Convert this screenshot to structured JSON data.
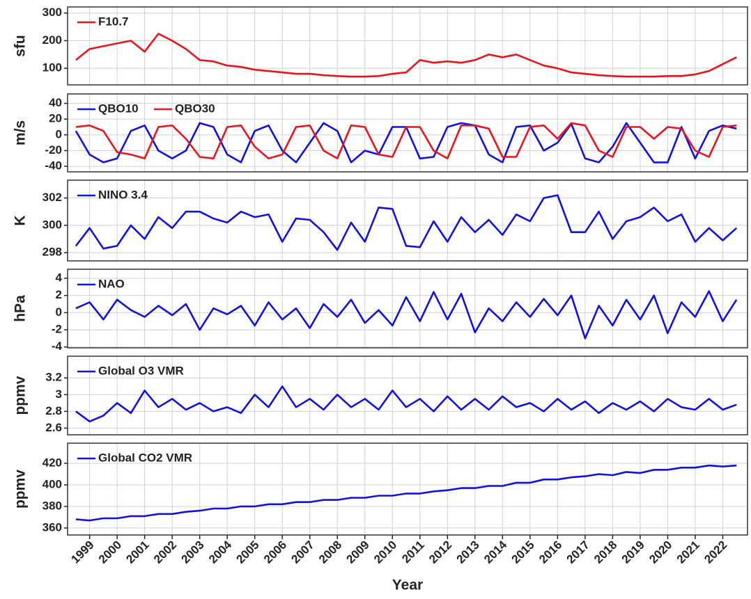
{
  "chart_data": [
    {
      "type": "line",
      "ylabel": "sfu",
      "xlim": [
        1998.2,
        2022.9
      ],
      "ylim": [
        40,
        322
      ],
      "yticks": [
        100,
        200,
        300
      ],
      "grid": true,
      "legend": "upper left",
      "x": [
        1998.5,
        1999,
        1999.5,
        2000,
        2000.5,
        2001,
        2001.5,
        2002,
        2002.5,
        2003,
        2003.5,
        2004,
        2004.5,
        2005,
        2005.5,
        2006,
        2006.5,
        2007,
        2007.5,
        2008,
        2008.5,
        2009,
        2009.5,
        2010,
        2010.5,
        2011,
        2011.5,
        2012,
        2012.5,
        2013,
        2013.5,
        2014,
        2014.5,
        2015,
        2015.5,
        2016,
        2016.5,
        2017,
        2017.5,
        2018,
        2018.5,
        2019,
        2019.5,
        2020,
        2020.5,
        2021,
        2021.5,
        2022,
        2022.5
      ],
      "series": [
        {
          "name": "F10.7",
          "color": "#e8141b",
          "values": [
            130,
            170,
            180,
            190,
            200,
            160,
            225,
            200,
            170,
            130,
            125,
            110,
            105,
            95,
            90,
            85,
            80,
            80,
            75,
            72,
            70,
            70,
            72,
            80,
            85,
            130,
            120,
            125,
            120,
            130,
            150,
            140,
            150,
            130,
            110,
            100,
            85,
            80,
            75,
            72,
            70,
            70,
            70,
            72,
            72,
            78,
            90,
            115,
            140
          ]
        }
      ]
    },
    {
      "type": "line",
      "ylabel": "m/s",
      "xlim": [
        1998.2,
        2022.9
      ],
      "ylim": [
        -47,
        52
      ],
      "yticks": [
        -40,
        -20,
        0,
        20,
        40
      ],
      "grid": true,
      "legend": "upper left",
      "x": [
        1998.5,
        1999,
        1999.5,
        2000,
        2000.5,
        2001,
        2001.5,
        2002,
        2002.5,
        2003,
        2003.5,
        2004,
        2004.5,
        2005,
        2005.5,
        2006,
        2006.5,
        2007,
        2007.5,
        2008,
        2008.5,
        2009,
        2009.5,
        2010,
        2010.5,
        2011,
        2011.5,
        2012,
        2012.5,
        2013,
        2013.5,
        2014,
        2014.5,
        2015,
        2015.5,
        2016,
        2016.5,
        2017,
        2017.5,
        2018,
        2018.5,
        2019,
        2019.5,
        2020,
        2020.5,
        2021,
        2021.5,
        2022,
        2022.5
      ],
      "series": [
        {
          "name": "QBO10",
          "color": "#1010e0",
          "values": [
            5,
            -25,
            -35,
            -30,
            5,
            12,
            -20,
            -30,
            -20,
            15,
            10,
            -25,
            -35,
            5,
            12,
            -20,
            -35,
            -10,
            15,
            5,
            -35,
            -20,
            -25,
            10,
            10,
            -30,
            -28,
            10,
            15,
            12,
            -25,
            -35,
            10,
            12,
            -20,
            -10,
            14,
            -30,
            -35,
            -15,
            15,
            -10,
            -35,
            -35,
            10,
            -30,
            5,
            12,
            8
          ]
        },
        {
          "name": "QBO30",
          "color": "#e8141b",
          "values": [
            10,
            12,
            5,
            -22,
            -25,
            -30,
            10,
            12,
            -5,
            -28,
            -30,
            10,
            12,
            -15,
            -30,
            -25,
            10,
            12,
            -20,
            -30,
            12,
            10,
            -25,
            -28,
            10,
            10,
            -20,
            -30,
            12,
            12,
            8,
            -28,
            -28,
            10,
            12,
            -5,
            15,
            12,
            -20,
            -28,
            10,
            10,
            -5,
            10,
            8,
            -20,
            -28,
            10,
            12
          ]
        }
      ]
    },
    {
      "type": "line",
      "ylabel": "K",
      "xlim": [
        1998.2,
        2022.9
      ],
      "ylim": [
        297.4,
        303.3
      ],
      "yticks": [
        298,
        300,
        302
      ],
      "grid": true,
      "legend": "upper left",
      "x": [
        1998.5,
        1999,
        1999.5,
        2000,
        2000.5,
        2001,
        2001.5,
        2002,
        2002.5,
        2003,
        2003.5,
        2004,
        2004.5,
        2005,
        2005.5,
        2006,
        2006.5,
        2007,
        2007.5,
        2008,
        2008.5,
        2009,
        2009.5,
        2010,
        2010.5,
        2011,
        2011.5,
        2012,
        2012.5,
        2013,
        2013.5,
        2014,
        2014.5,
        2015,
        2015.5,
        2016,
        2016.5,
        2017,
        2017.5,
        2018,
        2018.5,
        2019,
        2019.5,
        2020,
        2020.5,
        2021,
        2021.5,
        2022,
        2022.5
      ],
      "series": [
        {
          "name": "NINO 3.4",
          "color": "#1010e0",
          "values": [
            298.5,
            299.8,
            298.3,
            298.5,
            300.0,
            299.0,
            300.6,
            299.8,
            301.0,
            301.0,
            300.5,
            300.2,
            301.0,
            300.6,
            300.8,
            298.8,
            300.5,
            300.4,
            299.5,
            298.2,
            300.2,
            298.8,
            301.3,
            301.2,
            298.5,
            298.4,
            300.3,
            298.8,
            300.6,
            299.5,
            300.4,
            299.3,
            300.8,
            300.3,
            302.0,
            302.2,
            299.5,
            299.5,
            301.0,
            299.0,
            300.3,
            300.6,
            301.3,
            300.3,
            300.8,
            298.8,
            299.8,
            298.9,
            299.8
          ]
        }
      ]
    },
    {
      "type": "line",
      "ylabel": "hPa",
      "xlim": [
        1998.2,
        2022.9
      ],
      "ylim": [
        -4.1,
        5.05
      ],
      "yticks": [
        -4,
        -2,
        0,
        2,
        4
      ],
      "grid": true,
      "legend": "upper left",
      "x": [
        1998.5,
        1999,
        1999.5,
        2000,
        2000.5,
        2001,
        2001.5,
        2002,
        2002.5,
        2003,
        2003.5,
        2004,
        2004.5,
        2005,
        2005.5,
        2006,
        2006.5,
        2007,
        2007.5,
        2008,
        2008.5,
        2009,
        2009.5,
        2010,
        2010.5,
        2011,
        2011.5,
        2012,
        2012.5,
        2013,
        2013.5,
        2014,
        2014.5,
        2015,
        2015.5,
        2016,
        2016.5,
        2017,
        2017.5,
        2018,
        2018.5,
        2019,
        2019.5,
        2020,
        2020.5,
        2021,
        2021.5,
        2022,
        2022.5
      ],
      "series": [
        {
          "name": "NAO",
          "color": "#1010e0",
          "values": [
            0.5,
            1.2,
            -0.8,
            1.5,
            0.3,
            -0.5,
            0.8,
            -0.3,
            1.0,
            -2.0,
            0.5,
            -0.2,
            0.8,
            -1.5,
            1.2,
            -0.8,
            0.5,
            -1.8,
            1.0,
            -0.5,
            1.5,
            -1.2,
            0.3,
            -1.5,
            1.8,
            -1.0,
            2.4,
            -0.8,
            2.2,
            -2.3,
            0.5,
            -1.0,
            1.2,
            -0.5,
            1.6,
            -0.3,
            2.0,
            -3.0,
            0.8,
            -1.5,
            1.5,
            -0.8,
            2.0,
            -2.4,
            1.2,
            -0.5,
            2.5,
            -1.0,
            1.5
          ]
        }
      ]
    },
    {
      "type": "line",
      "ylabel": "ppmv",
      "xlim": [
        1998.2,
        2022.9
      ],
      "ylim": [
        2.52,
        3.46
      ],
      "yticks": [
        2.6,
        2.8,
        3,
        3.2
      ],
      "grid": true,
      "legend": "upper left",
      "x": [
        1998.5,
        1999,
        1999.5,
        2000,
        2000.5,
        2001,
        2001.5,
        2002,
        2002.5,
        2003,
        2003.5,
        2004,
        2004.5,
        2005,
        2005.5,
        2006,
        2006.5,
        2007,
        2007.5,
        2008,
        2008.5,
        2009,
        2009.5,
        2010,
        2010.5,
        2011,
        2011.5,
        2012,
        2012.5,
        2013,
        2013.5,
        2014,
        2014.5,
        2015,
        2015.5,
        2016,
        2016.5,
        2017,
        2017.5,
        2018,
        2018.5,
        2019,
        2019.5,
        2020,
        2020.5,
        2021,
        2021.5,
        2022,
        2022.5
      ],
      "series": [
        {
          "name": "Global O3 VMR",
          "color": "#1010e0",
          "values": [
            2.8,
            2.68,
            2.75,
            2.9,
            2.78,
            3.05,
            2.85,
            2.95,
            2.82,
            2.9,
            2.8,
            2.85,
            2.78,
            3.0,
            2.85,
            3.1,
            2.85,
            2.95,
            2.82,
            3.0,
            2.85,
            2.95,
            2.82,
            3.05,
            2.85,
            2.95,
            2.8,
            2.98,
            2.82,
            2.95,
            2.82,
            2.98,
            2.85,
            2.9,
            2.8,
            2.95,
            2.82,
            2.92,
            2.78,
            2.9,
            2.82,
            2.92,
            2.8,
            2.95,
            2.85,
            2.82,
            2.95,
            2.82,
            2.88
          ]
        }
      ]
    },
    {
      "type": "line",
      "ylabel": "ppmv",
      "xlabel": "Year",
      "xlim": [
        1998.2,
        2022.9
      ],
      "ylim": [
        353.5,
        438.7
      ],
      "yticks": [
        360,
        380,
        400,
        420
      ],
      "grid": true,
      "legend": "upper left",
      "xticks": [
        1999,
        2000,
        2001,
        2002,
        2003,
        2004,
        2005,
        2006,
        2007,
        2008,
        2009,
        2010,
        2011,
        2012,
        2013,
        2014,
        2015,
        2016,
        2017,
        2018,
        2019,
        2020,
        2021,
        2022
      ],
      "x": [
        1998.5,
        1999,
        1999.5,
        2000,
        2000.5,
        2001,
        2001.5,
        2002,
        2002.5,
        2003,
        2003.5,
        2004,
        2004.5,
        2005,
        2005.5,
        2006,
        2006.5,
        2007,
        2007.5,
        2008,
        2008.5,
        2009,
        2009.5,
        2010,
        2010.5,
        2011,
        2011.5,
        2012,
        2012.5,
        2013,
        2013.5,
        2014,
        2014.5,
        2015,
        2015.5,
        2016,
        2016.5,
        2017,
        2017.5,
        2018,
        2018.5,
        2019,
        2019.5,
        2020,
        2020.5,
        2021,
        2021.5,
        2022,
        2022.5
      ],
      "series": [
        {
          "name": "Global CO2 VMR",
          "color": "#1010e0",
          "values": [
            368,
            367,
            369,
            369,
            371,
            371,
            373,
            373,
            375,
            376,
            378,
            378,
            380,
            380,
            382,
            382,
            384,
            384,
            386,
            386,
            388,
            388,
            390,
            390,
            392,
            392,
            394,
            395,
            397,
            397,
            399,
            399,
            402,
            402,
            405,
            405,
            407,
            408,
            410,
            409,
            412,
            411,
            414,
            414,
            416,
            416,
            418,
            417,
            418
          ]
        }
      ]
    }
  ]
}
